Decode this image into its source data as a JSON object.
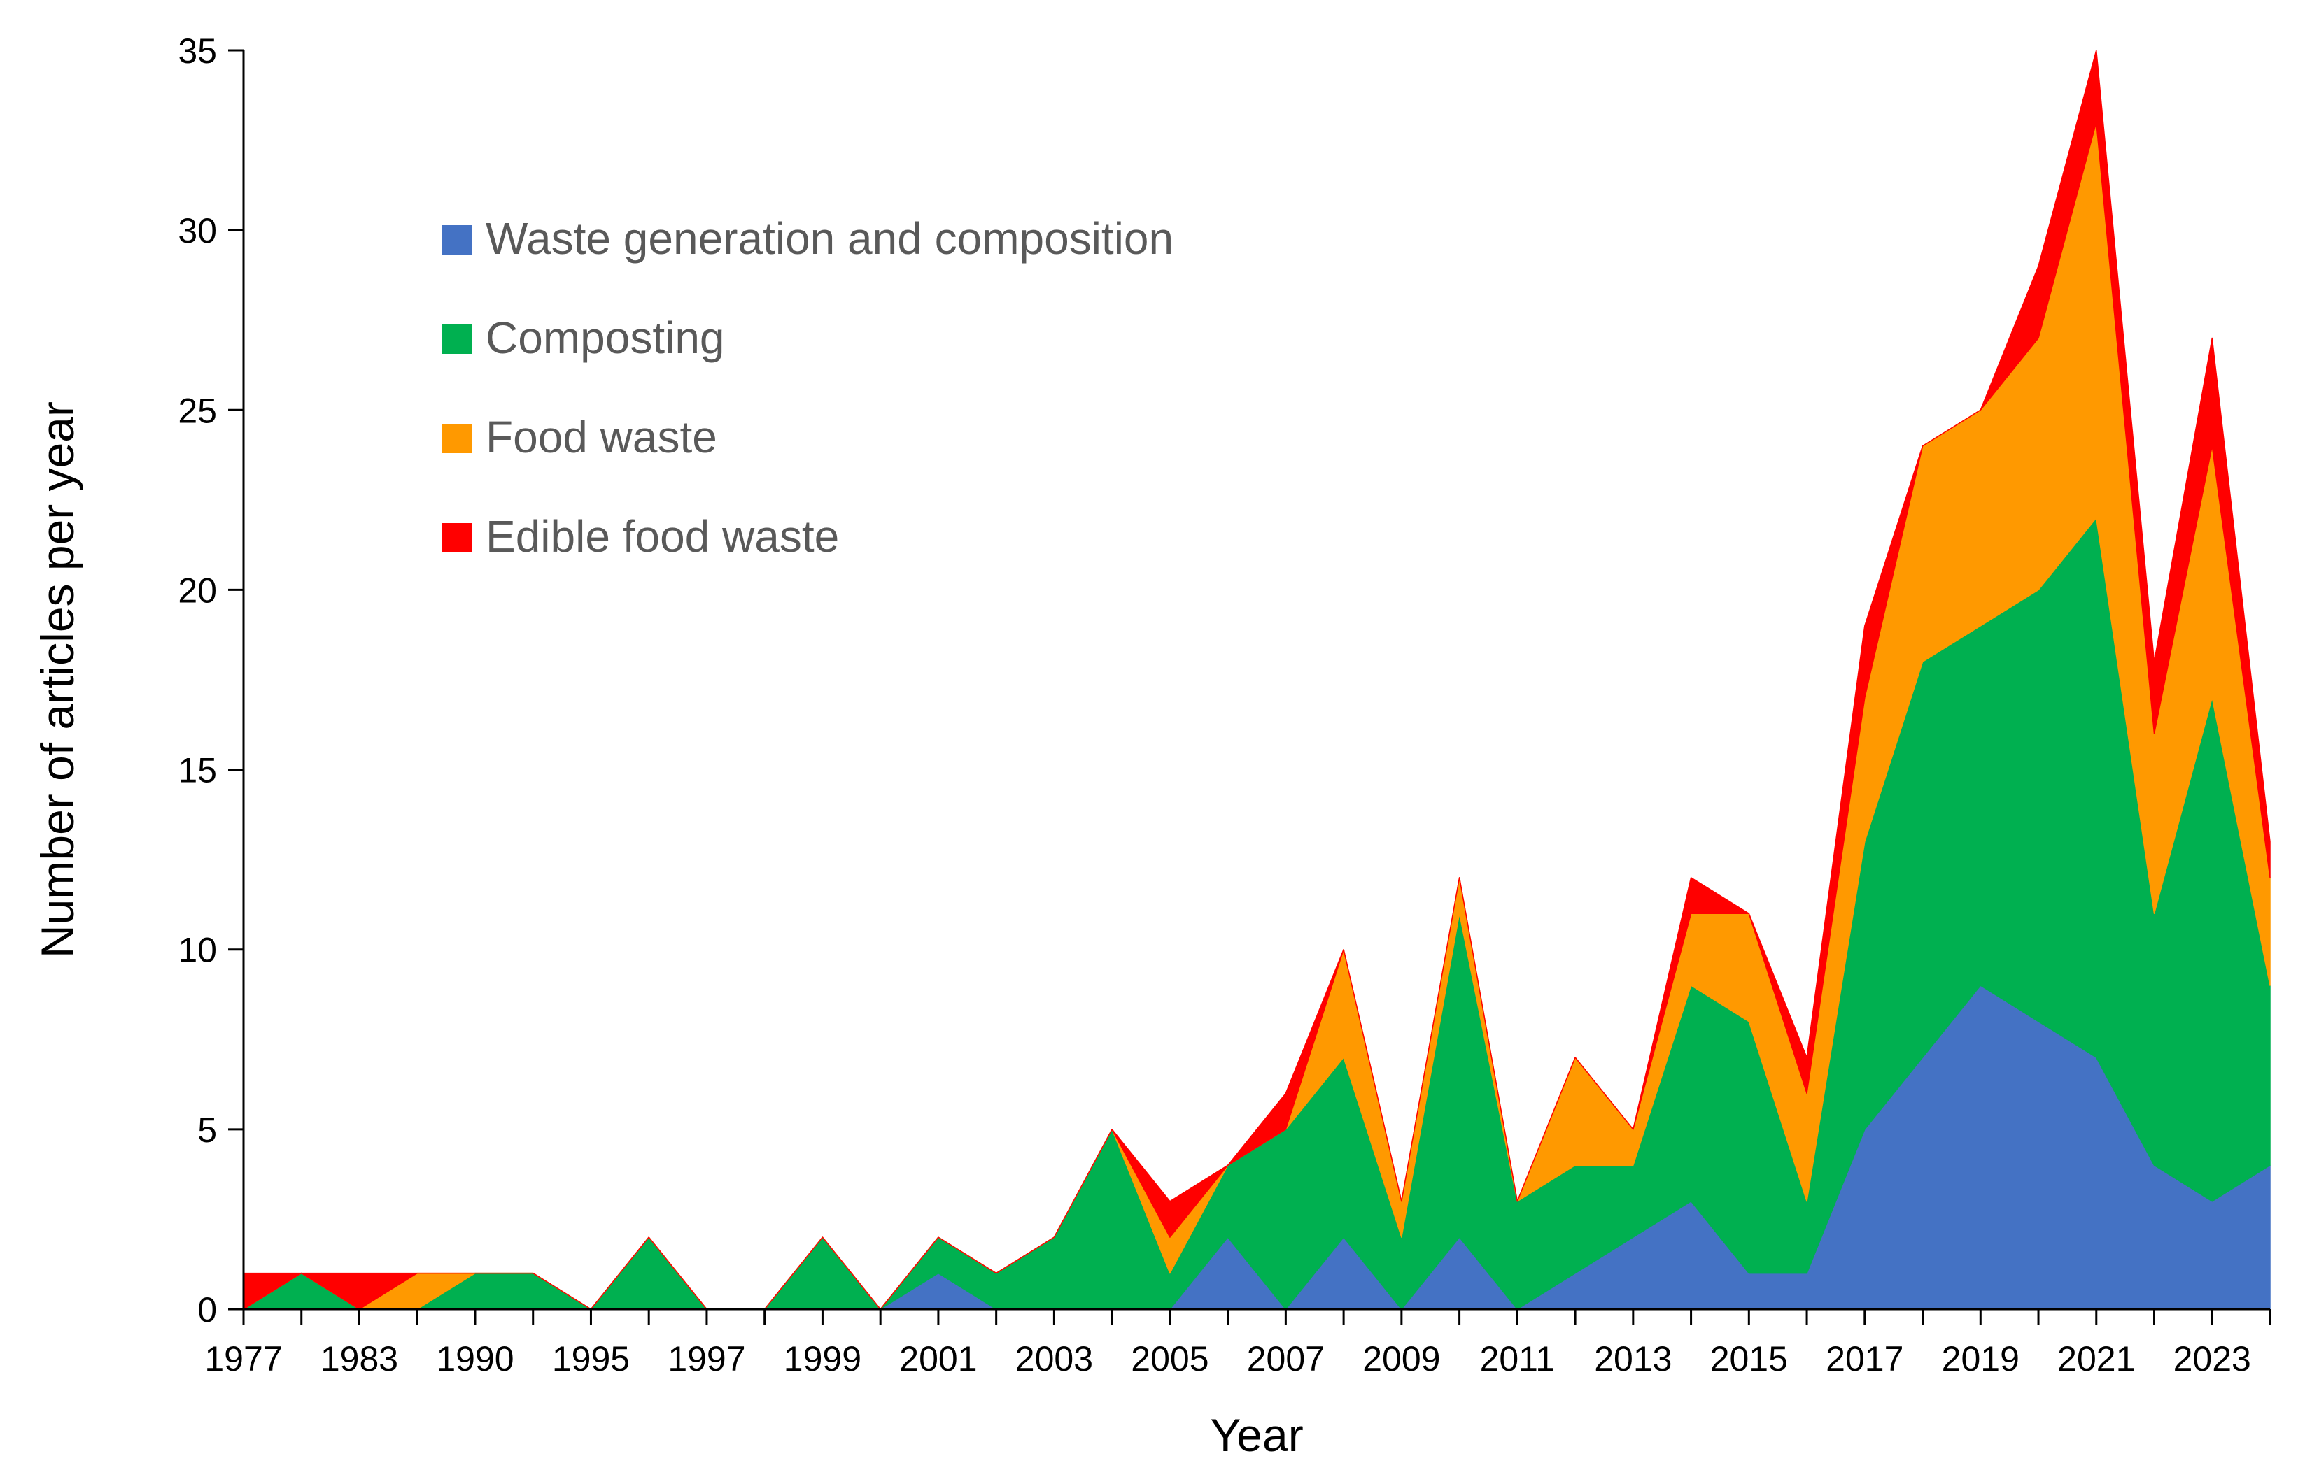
{
  "chart_data": {
    "type": "area",
    "stacked": true,
    "title": "",
    "xlabel": "Year",
    "ylabel": "Number of articles per year",
    "ylim": [
      0,
      35
    ],
    "yticks": [
      0,
      5,
      10,
      15,
      20,
      25,
      30,
      35
    ],
    "grid": false,
    "legend_position": "top-left",
    "x": [
      "1977",
      "1980",
      "1983",
      "1986",
      "1990",
      "1992",
      "1995",
      "1996",
      "1997",
      "1998",
      "1999",
      "2000",
      "2001",
      "2002",
      "2003",
      "2004",
      "2005",
      "2006",
      "2007",
      "2008",
      "2009",
      "2010",
      "2011",
      "2012",
      "2013",
      "2014",
      "2015",
      "2016",
      "2017",
      "2018",
      "2019",
      "2020",
      "2021",
      "2022",
      "2023",
      "2024"
    ],
    "x_tick_labels": [
      "1977",
      "1983",
      "1990",
      "1995",
      "1997",
      "1999",
      "2001",
      "2003",
      "2005",
      "2007",
      "2009",
      "2011",
      "2013",
      "2015",
      "2017",
      "2019",
      "2021",
      "2023"
    ],
    "series": [
      {
        "name": "Waste generation and composition",
        "color": "#4472C4",
        "values": [
          0,
          0,
          0,
          0,
          0,
          0,
          0,
          0,
          0,
          0,
          0,
          0,
          1,
          0,
          0,
          0,
          0,
          2,
          0,
          2,
          0,
          2,
          0,
          1,
          2,
          3,
          1,
          1,
          5,
          7,
          9,
          8,
          7,
          4,
          3,
          4
        ]
      },
      {
        "name": "Composting",
        "color": "#00B050",
        "values": [
          0,
          1,
          0,
          0,
          1,
          1,
          0,
          2,
          0,
          0,
          2,
          0,
          1,
          1,
          2,
          5,
          1,
          2,
          5,
          5,
          2,
          9,
          3,
          3,
          2,
          6,
          7,
          2,
          8,
          11,
          10,
          12,
          15,
          7,
          14,
          5
        ]
      },
      {
        "name": "Food waste",
        "color": "#FF9900",
        "values": [
          0,
          0,
          0,
          1,
          0,
          0,
          0,
          0,
          0,
          0,
          0,
          0,
          0,
          0,
          0,
          0,
          1,
          0,
          0,
          3,
          1,
          1,
          0,
          3,
          1,
          2,
          3,
          3,
          4,
          6,
          6,
          7,
          11,
          5,
          7,
          3
        ]
      },
      {
        "name": "Edible food waste",
        "color": "#FF0000",
        "values": [
          1,
          0,
          1,
          0,
          0,
          0,
          0,
          0,
          0,
          0,
          0,
          0,
          0,
          0,
          0,
          0,
          1,
          0,
          1,
          0,
          0,
          0,
          0,
          0,
          0,
          1,
          0,
          1,
          2,
          0,
          0,
          2,
          2,
          2,
          3,
          1
        ]
      }
    ]
  }
}
